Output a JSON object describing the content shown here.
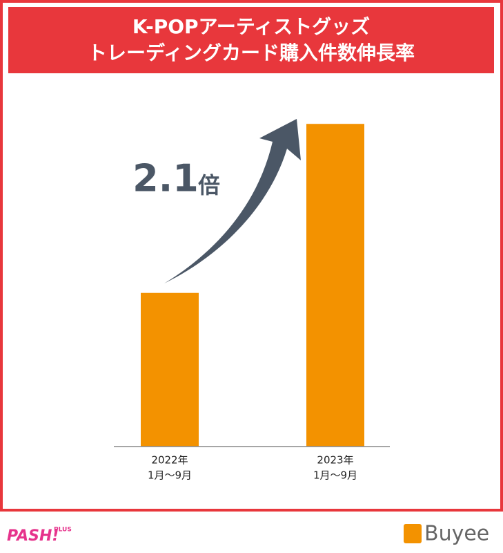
{
  "chart_data": {
    "type": "bar",
    "title": [
      "K-POPアーティストグッズ",
      "トレーディングカード購入件数伸長率"
    ],
    "categories": [
      [
        "2022年",
        "1月〜9月"
      ],
      [
        "2023年",
        "1月〜9月"
      ]
    ],
    "values": [
      1,
      2.1
    ],
    "color": "#f39200",
    "ylim": [
      0,
      2.2
    ],
    "annotation": [
      "2.1",
      "倍"
    ],
    "logos": [
      "PASH!",
      "PLUS",
      "Buyee"
    ]
  }
}
